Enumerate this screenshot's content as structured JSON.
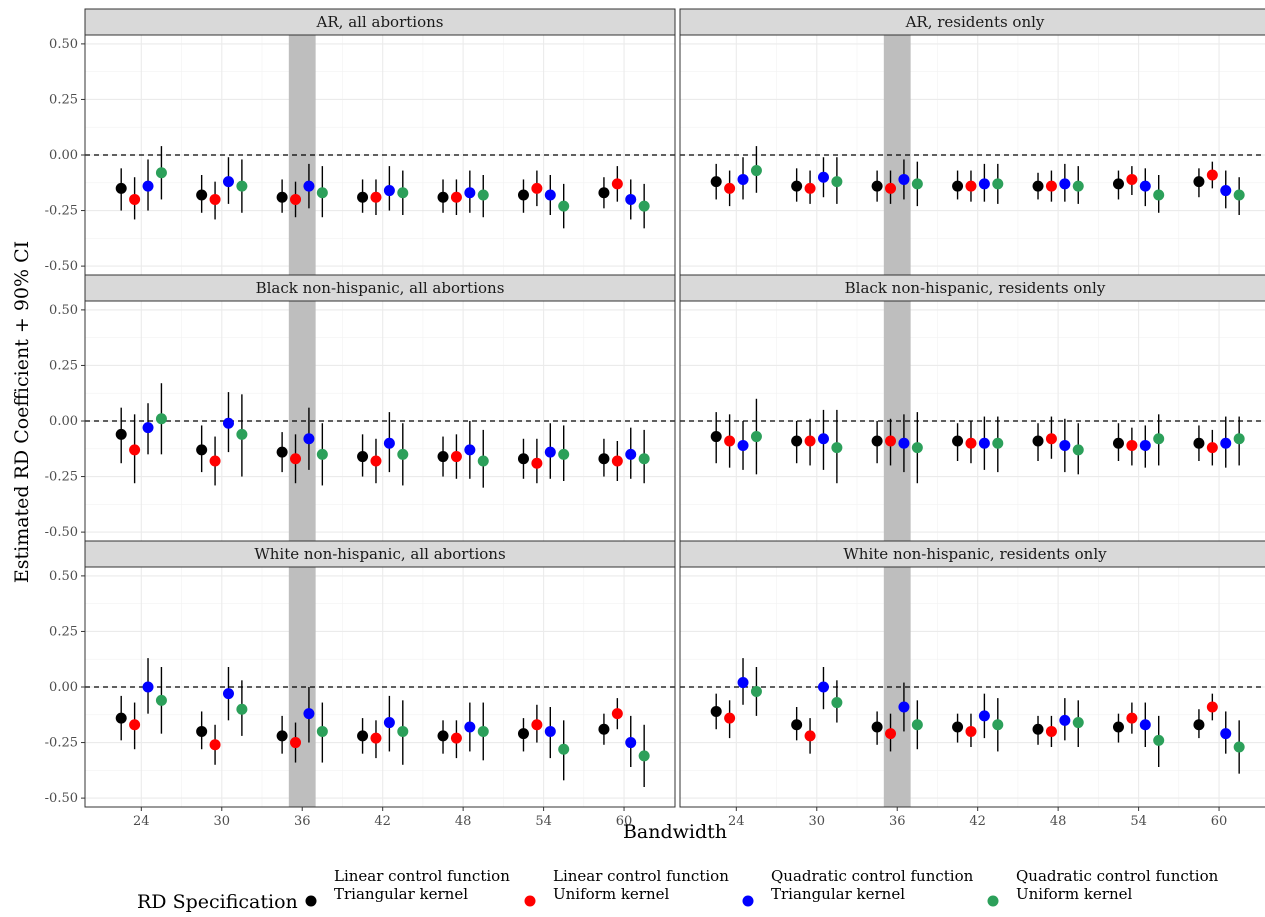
{
  "chart_data": {
    "type": "scatter",
    "subtype": "point-range faceted",
    "xlabel": "Bandwidth",
    "ylabel": "Estimated RD Coefficient + 90% CI",
    "x_ticks": [
      24,
      30,
      36,
      42,
      48,
      54,
      60
    ],
    "y_ticks": [
      "-0.50",
      "-0.25",
      "0.00",
      "0.25",
      "0.50"
    ],
    "y_tick_values": [
      -0.5,
      -0.25,
      0,
      0.25,
      0.5
    ],
    "ylim": [
      -0.54,
      0.54
    ],
    "xlim": [
      19.8,
      63.8
    ],
    "reference_line_y": 0,
    "shaded_band_x": [
      35,
      37
    ],
    "grid": true,
    "legend_position": "bottom",
    "legend": {
      "title": "RD Specification",
      "entries": [
        {
          "line1": "Linear control function",
          "line2": "Triangular kernel",
          "color": "#000000"
        },
        {
          "line1": "Linear control function",
          "line2": "Uniform kernel",
          "color": "#ff0000"
        },
        {
          "line1": "Quadratic control function",
          "line2": "Triangular kernel",
          "color": "#0000ff"
        },
        {
          "line1": "Quadratic control function",
          "line2": "Uniform kernel",
          "color": "#2ca05a"
        }
      ]
    },
    "series_offsets": [
      -1.5,
      -0.5,
      0.5,
      1.5
    ],
    "panels": [
      {
        "title": "AR, all abortions",
        "points": [
          [
            [
              -0.15,
              -0.25,
              -0.06
            ],
            [
              -0.2,
              -0.29,
              -0.1
            ],
            [
              -0.14,
              -0.25,
              -0.02
            ],
            [
              -0.08,
              -0.2,
              0.04
            ]
          ],
          [
            [
              -0.18,
              -0.26,
              -0.09
            ],
            [
              -0.2,
              -0.29,
              -0.12
            ],
            [
              -0.12,
              -0.22,
              -0.01
            ],
            [
              -0.14,
              -0.26,
              -0.02
            ]
          ],
          [
            [
              -0.19,
              -0.26,
              -0.11
            ],
            [
              -0.2,
              -0.28,
              -0.12
            ],
            [
              -0.14,
              -0.24,
              -0.04
            ],
            [
              -0.17,
              -0.28,
              -0.05
            ]
          ],
          [
            [
              -0.19,
              -0.26,
              -0.11
            ],
            [
              -0.19,
              -0.27,
              -0.11
            ],
            [
              -0.16,
              -0.25,
              -0.05
            ],
            [
              -0.17,
              -0.27,
              -0.07
            ]
          ],
          [
            [
              -0.19,
              -0.26,
              -0.11
            ],
            [
              -0.19,
              -0.27,
              -0.11
            ],
            [
              -0.17,
              -0.26,
              -0.07
            ],
            [
              -0.18,
              -0.28,
              -0.09
            ]
          ],
          [
            [
              -0.18,
              -0.26,
              -0.11
            ],
            [
              -0.15,
              -0.23,
              -0.07
            ],
            [
              -0.18,
              -0.27,
              -0.09
            ],
            [
              -0.23,
              -0.33,
              -0.13
            ]
          ],
          [
            [
              -0.17,
              -0.24,
              -0.1
            ],
            [
              -0.13,
              -0.21,
              -0.05
            ],
            [
              -0.2,
              -0.29,
              -0.11
            ],
            [
              -0.23,
              -0.33,
              -0.13
            ]
          ]
        ]
      },
      {
        "title": "AR, residents only",
        "points": [
          [
            [
              -0.12,
              -0.2,
              -0.04
            ],
            [
              -0.15,
              -0.23,
              -0.07
            ],
            [
              -0.11,
              -0.2,
              -0.01
            ],
            [
              -0.07,
              -0.17,
              0.04
            ]
          ],
          [
            [
              -0.14,
              -0.21,
              -0.06
            ],
            [
              -0.15,
              -0.22,
              -0.07
            ],
            [
              -0.1,
              -0.19,
              -0.01
            ],
            [
              -0.12,
              -0.22,
              -0.01
            ]
          ],
          [
            [
              -0.14,
              -0.21,
              -0.07
            ],
            [
              -0.15,
              -0.22,
              -0.07
            ],
            [
              -0.11,
              -0.2,
              -0.02
            ],
            [
              -0.13,
              -0.23,
              -0.03
            ]
          ],
          [
            [
              -0.14,
              -0.2,
              -0.07
            ],
            [
              -0.14,
              -0.21,
              -0.07
            ],
            [
              -0.13,
              -0.21,
              -0.04
            ],
            [
              -0.13,
              -0.22,
              -0.04
            ]
          ],
          [
            [
              -0.14,
              -0.2,
              -0.08
            ],
            [
              -0.14,
              -0.21,
              -0.07
            ],
            [
              -0.13,
              -0.21,
              -0.04
            ],
            [
              -0.14,
              -0.22,
              -0.05
            ]
          ],
          [
            [
              -0.13,
              -0.2,
              -0.07
            ],
            [
              -0.11,
              -0.18,
              -0.05
            ],
            [
              -0.14,
              -0.23,
              -0.06
            ],
            [
              -0.18,
              -0.26,
              -0.09
            ]
          ],
          [
            [
              -0.12,
              -0.19,
              -0.06
            ],
            [
              -0.09,
              -0.15,
              -0.03
            ],
            [
              -0.16,
              -0.24,
              -0.07
            ],
            [
              -0.18,
              -0.27,
              -0.1
            ]
          ]
        ]
      },
      {
        "title": "Black non-hispanic, all abortions",
        "points": [
          [
            [
              -0.06,
              -0.19,
              0.06
            ],
            [
              -0.13,
              -0.28,
              0.03
            ],
            [
              -0.03,
              -0.15,
              0.08
            ],
            [
              0.01,
              -0.15,
              0.17
            ]
          ],
          [
            [
              -0.13,
              -0.23,
              -0.02
            ],
            [
              -0.18,
              -0.29,
              -0.07
            ],
            [
              -0.01,
              -0.14,
              0.13
            ],
            [
              -0.06,
              -0.25,
              0.12
            ]
          ],
          [
            [
              -0.14,
              -0.23,
              -0.05
            ],
            [
              -0.17,
              -0.28,
              -0.06
            ],
            [
              -0.08,
              -0.22,
              0.06
            ],
            [
              -0.15,
              -0.29,
              -0.01
            ]
          ],
          [
            [
              -0.16,
              -0.25,
              -0.06
            ],
            [
              -0.18,
              -0.28,
              -0.08
            ],
            [
              -0.1,
              -0.23,
              0.04
            ],
            [
              -0.15,
              -0.29,
              -0.01
            ]
          ],
          [
            [
              -0.16,
              -0.25,
              -0.07
            ],
            [
              -0.16,
              -0.26,
              -0.06
            ],
            [
              -0.13,
              -0.26,
              0.0
            ],
            [
              -0.18,
              -0.3,
              -0.04
            ]
          ],
          [
            [
              -0.17,
              -0.26,
              -0.08
            ],
            [
              -0.19,
              -0.28,
              -0.08
            ],
            [
              -0.14,
              -0.26,
              -0.01
            ],
            [
              -0.15,
              -0.27,
              -0.02
            ]
          ],
          [
            [
              -0.17,
              -0.25,
              -0.08
            ],
            [
              -0.18,
              -0.27,
              -0.09
            ],
            [
              -0.15,
              -0.26,
              -0.03
            ],
            [
              -0.17,
              -0.28,
              -0.04
            ]
          ]
        ]
      },
      {
        "title": "Black non-hispanic, residents only",
        "points": [
          [
            [
              -0.07,
              -0.19,
              0.04
            ],
            [
              -0.09,
              -0.21,
              0.03
            ],
            [
              -0.11,
              -0.22,
              0.0
            ],
            [
              -0.07,
              -0.24,
              0.1
            ]
          ],
          [
            [
              -0.09,
              -0.19,
              0.0
            ],
            [
              -0.09,
              -0.2,
              0.01
            ],
            [
              -0.08,
              -0.22,
              0.05
            ],
            [
              -0.12,
              -0.28,
              0.05
            ]
          ],
          [
            [
              -0.09,
              -0.19,
              0.0
            ],
            [
              -0.09,
              -0.2,
              0.01
            ],
            [
              -0.1,
              -0.23,
              0.03
            ],
            [
              -0.12,
              -0.28,
              0.04
            ]
          ],
          [
            [
              -0.09,
              -0.18,
              -0.01
            ],
            [
              -0.1,
              -0.19,
              0.0
            ],
            [
              -0.1,
              -0.22,
              0.02
            ],
            [
              -0.1,
              -0.23,
              0.02
            ]
          ],
          [
            [
              -0.09,
              -0.18,
              -0.01
            ],
            [
              -0.08,
              -0.17,
              0.02
            ],
            [
              -0.11,
              -0.23,
              0.01
            ],
            [
              -0.13,
              -0.24,
              -0.01
            ]
          ],
          [
            [
              -0.1,
              -0.18,
              -0.01
            ],
            [
              -0.11,
              -0.2,
              -0.03
            ],
            [
              -0.11,
              -0.21,
              -0.02
            ],
            [
              -0.08,
              -0.2,
              0.03
            ]
          ],
          [
            [
              -0.1,
              -0.18,
              -0.02
            ],
            [
              -0.12,
              -0.2,
              -0.04
            ],
            [
              -0.1,
              -0.21,
              0.02
            ],
            [
              -0.08,
              -0.2,
              0.02
            ]
          ]
        ]
      },
      {
        "title": "White non-hispanic, all abortions",
        "points": [
          [
            [
              -0.14,
              -0.24,
              -0.04
            ],
            [
              -0.17,
              -0.28,
              -0.07
            ],
            [
              0.0,
              -0.12,
              0.13
            ],
            [
              -0.06,
              -0.21,
              0.09
            ]
          ],
          [
            [
              -0.2,
              -0.28,
              -0.11
            ],
            [
              -0.26,
              -0.35,
              -0.17
            ],
            [
              -0.03,
              -0.15,
              0.09
            ],
            [
              -0.1,
              -0.22,
              0.03
            ]
          ],
          [
            [
              -0.22,
              -0.3,
              -0.13
            ],
            [
              -0.25,
              -0.34,
              -0.16
            ],
            [
              -0.12,
              -0.25,
              0.0
            ],
            [
              -0.2,
              -0.34,
              -0.07
            ]
          ],
          [
            [
              -0.22,
              -0.3,
              -0.14
            ],
            [
              -0.23,
              -0.32,
              -0.15
            ],
            [
              -0.16,
              -0.29,
              -0.04
            ],
            [
              -0.2,
              -0.35,
              -0.06
            ]
          ],
          [
            [
              -0.22,
              -0.3,
              -0.15
            ],
            [
              -0.23,
              -0.32,
              -0.15
            ],
            [
              -0.18,
              -0.29,
              -0.07
            ],
            [
              -0.2,
              -0.33,
              -0.07
            ]
          ],
          [
            [
              -0.21,
              -0.29,
              -0.14
            ],
            [
              -0.17,
              -0.25,
              -0.08
            ],
            [
              -0.2,
              -0.32,
              -0.09
            ],
            [
              -0.28,
              -0.42,
              -0.15
            ]
          ],
          [
            [
              -0.19,
              -0.26,
              -0.12
            ],
            [
              -0.12,
              -0.19,
              -0.05
            ],
            [
              -0.25,
              -0.36,
              -0.13
            ],
            [
              -0.31,
              -0.45,
              -0.17
            ]
          ]
        ]
      },
      {
        "title": "White non-hispanic, residents only",
        "points": [
          [
            [
              -0.11,
              -0.19,
              -0.03
            ],
            [
              -0.14,
              -0.23,
              -0.06
            ],
            [
              0.02,
              -0.08,
              0.13
            ],
            [
              -0.02,
              -0.13,
              0.09
            ]
          ],
          [
            [
              -0.17,
              -0.24,
              -0.09
            ],
            [
              -0.22,
              -0.3,
              -0.14
            ],
            [
              0.0,
              -0.1,
              0.09
            ],
            [
              -0.07,
              -0.16,
              0.03
            ]
          ],
          [
            [
              -0.18,
              -0.26,
              -0.11
            ],
            [
              -0.21,
              -0.29,
              -0.12
            ],
            [
              -0.09,
              -0.2,
              0.02
            ],
            [
              -0.17,
              -0.28,
              -0.06
            ]
          ],
          [
            [
              -0.18,
              -0.25,
              -0.12
            ],
            [
              -0.2,
              -0.27,
              -0.12
            ],
            [
              -0.13,
              -0.23,
              -0.03
            ],
            [
              -0.17,
              -0.29,
              -0.05
            ]
          ],
          [
            [
              -0.19,
              -0.26,
              -0.13
            ],
            [
              -0.2,
              -0.27,
              -0.13
            ],
            [
              -0.15,
              -0.24,
              -0.05
            ],
            [
              -0.16,
              -0.27,
              -0.06
            ]
          ],
          [
            [
              -0.18,
              -0.25,
              -0.12
            ],
            [
              -0.14,
              -0.21,
              -0.07
            ],
            [
              -0.17,
              -0.27,
              -0.07
            ],
            [
              -0.24,
              -0.36,
              -0.13
            ]
          ],
          [
            [
              -0.17,
              -0.23,
              -0.1
            ],
            [
              -0.09,
              -0.15,
              -0.03
            ],
            [
              -0.21,
              -0.3,
              -0.11
            ],
            [
              -0.27,
              -0.39,
              -0.15
            ]
          ]
        ]
      }
    ]
  }
}
